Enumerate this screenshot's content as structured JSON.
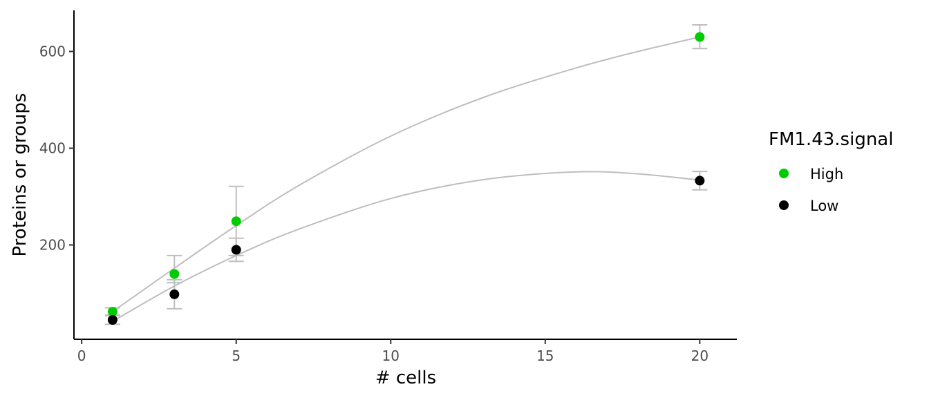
{
  "chart_data": {
    "type": "scatter",
    "title": "",
    "xlabel": "# cells",
    "ylabel": "Proteins or groups",
    "xlim": [
      -0.25,
      21.2
    ],
    "ylim": [
      5,
      685
    ],
    "x_ticks": [
      0,
      5,
      10,
      15,
      20
    ],
    "y_ticks": [
      200,
      400,
      600
    ],
    "grid": false,
    "legend": {
      "title": "FM1.43.signal",
      "position": "right"
    },
    "series": [
      {
        "name": "High",
        "color": "#00cc00",
        "points": [
          {
            "x": 1,
            "y": 62,
            "err_low": 54,
            "err_high": 70
          },
          {
            "x": 3,
            "y": 140,
            "err_low": 122,
            "err_high": 178
          },
          {
            "x": 5,
            "y": 249,
            "err_low": 178,
            "err_high": 321
          },
          {
            "x": 20,
            "y": 630,
            "err_low": 606,
            "err_high": 655
          }
        ],
        "fit": [
          {
            "x": 1,
            "y": 62
          },
          {
            "x": 3,
            "y": 152
          },
          {
            "x": 5,
            "y": 240
          },
          {
            "x": 7,
            "y": 322
          },
          {
            "x": 10,
            "y": 425
          },
          {
            "x": 13,
            "y": 505
          },
          {
            "x": 16,
            "y": 566
          },
          {
            "x": 18,
            "y": 600
          },
          {
            "x": 20,
            "y": 630
          }
        ]
      },
      {
        "name": "Low",
        "color": "#000000",
        "points": [
          {
            "x": 1,
            "y": 45,
            "err_low": 36,
            "err_high": 55
          },
          {
            "x": 3,
            "y": 98,
            "err_low": 68,
            "err_high": 128
          },
          {
            "x": 5,
            "y": 190,
            "err_low": 166,
            "err_high": 214
          },
          {
            "x": 20,
            "y": 333,
            "err_low": 314,
            "err_high": 352
          }
        ],
        "fit": [
          {
            "x": 1,
            "y": 42
          },
          {
            "x": 3,
            "y": 115
          },
          {
            "x": 5,
            "y": 178
          },
          {
            "x": 7,
            "y": 232
          },
          {
            "x": 10,
            "y": 296
          },
          {
            "x": 13,
            "y": 335
          },
          {
            "x": 16,
            "y": 351
          },
          {
            "x": 18,
            "y": 347
          },
          {
            "x": 20,
            "y": 334
          }
        ]
      }
    ],
    "fit_line_color": "#bebebe",
    "error_bar_color": "#bebebe"
  }
}
